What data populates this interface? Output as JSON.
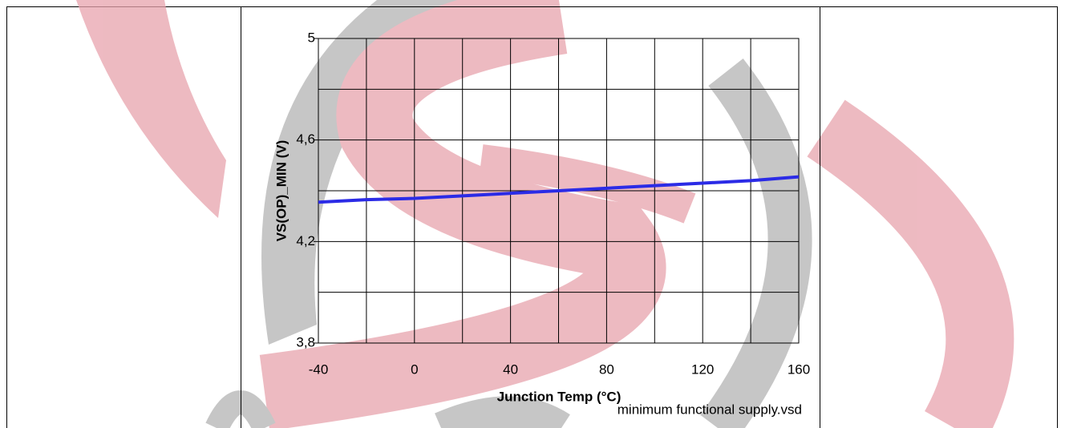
{
  "chart_data": {
    "type": "line",
    "x_label": "Junction Temp (°C)",
    "y_label": "VS(OP)_MIN (V)",
    "note": "minimum functional supply.vsd",
    "x": [
      -40,
      -20,
      0,
      20,
      40,
      60,
      80,
      100,
      120,
      140,
      160
    ],
    "series": [
      {
        "color": "#2b2be6",
        "values": [
          4.355,
          4.365,
          4.37,
          4.38,
          4.39,
          4.4,
          4.41,
          4.42,
          4.43,
          4.44,
          4.455
        ]
      }
    ],
    "xlim": [
      -40,
      160
    ],
    "xticks": [
      -40,
      0,
      40,
      80,
      120,
      160
    ],
    "x_minor_grid": [
      -20,
      20,
      60,
      100,
      140
    ],
    "ylim": [
      3.8,
      5
    ],
    "yticks": [
      {
        "value": 3.8,
        "label": "3,8"
      },
      {
        "value": 4.2,
        "label": "4,2"
      },
      {
        "value": 4.6,
        "label": "4,6"
      },
      5
    ],
    "y_minor_grid": [
      4.0,
      4.4,
      4.8
    ],
    "grid": true
  }
}
